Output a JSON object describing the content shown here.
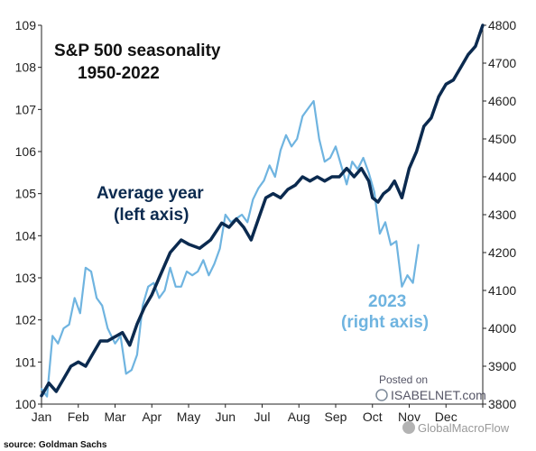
{
  "chart_data": {
    "type": "line",
    "title": "S&P 500 seasonality",
    "subtitle": "1950-2022",
    "source": "source: Goldman Sachs",
    "watermark": {
      "posted_on": "Posted on",
      "site": "ISABELNET.com",
      "wechat": "GlobalMacroFlow"
    },
    "x_range": [
      0,
      12
    ],
    "x_tick_labels": [
      "Jan",
      "Feb",
      "Mar",
      "Apr",
      "May",
      "Jun",
      "Jul",
      "Aug",
      "Sep",
      "Oct",
      "Nov",
      "Dec"
    ],
    "y_left": {
      "ticks": [
        100,
        101,
        102,
        103,
        104,
        105,
        106,
        107,
        108,
        109
      ],
      "range": [
        100,
        109
      ]
    },
    "y_right": {
      "ticks": [
        3800,
        3900,
        4000,
        4100,
        4200,
        4300,
        4400,
        4500,
        4600,
        4700,
        4800
      ],
      "range": [
        3800,
        4800
      ]
    },
    "grid": false,
    "legend": "none",
    "series": [
      {
        "label_line1": "Average year",
        "label_line2": "(left axis)",
        "axis": "left",
        "color": "#0b2a4f",
        "x": [
          0,
          0.2,
          0.4,
          0.6,
          0.8,
          1.0,
          1.2,
          1.4,
          1.6,
          1.8,
          2.0,
          2.2,
          2.4,
          2.6,
          2.8,
          3.0,
          3.2,
          3.5,
          3.8,
          4.0,
          4.3,
          4.6,
          4.9,
          5.1,
          5.3,
          5.5,
          5.7,
          5.9,
          6.1,
          6.3,
          6.5,
          6.7,
          6.9,
          7.1,
          7.3,
          7.5,
          7.7,
          7.9,
          8.1,
          8.3,
          8.5,
          8.7,
          8.9,
          9.0,
          9.15,
          9.3,
          9.45,
          9.6,
          9.8,
          10.0,
          10.2,
          10.4,
          10.6,
          10.8,
          11.0,
          11.2,
          11.4,
          11.6,
          11.8,
          12.0
        ],
        "y": [
          100.2,
          100.5,
          100.3,
          100.6,
          100.9,
          101.0,
          100.9,
          101.2,
          101.5,
          101.5,
          101.6,
          101.7,
          101.4,
          101.9,
          102.3,
          102.6,
          103.0,
          103.6,
          103.9,
          103.8,
          103.7,
          103.9,
          104.3,
          104.2,
          104.4,
          104.2,
          103.9,
          104.4,
          104.9,
          105.0,
          104.9,
          105.1,
          105.2,
          105.4,
          105.3,
          105.4,
          105.3,
          105.4,
          105.4,
          105.6,
          105.4,
          105.6,
          105.3,
          104.9,
          104.8,
          105.0,
          105.1,
          105.3,
          104.9,
          105.6,
          106.0,
          106.6,
          106.8,
          107.3,
          107.6,
          107.7,
          108.0,
          108.3,
          108.5,
          109.0
        ]
      },
      {
        "label_line1": "2023",
        "label_line2": "(right axis)",
        "axis": "right",
        "color": "#6fb4e0",
        "x": [
          0,
          0.15,
          0.3,
          0.45,
          0.6,
          0.75,
          0.9,
          1.05,
          1.2,
          1.35,
          1.5,
          1.65,
          1.8,
          2.0,
          2.15,
          2.3,
          2.45,
          2.6,
          2.75,
          2.9,
          3.05,
          3.2,
          3.35,
          3.5,
          3.65,
          3.8,
          3.95,
          4.1,
          4.25,
          4.4,
          4.55,
          4.7,
          4.85,
          5.0,
          5.15,
          5.3,
          5.45,
          5.6,
          5.75,
          5.9,
          6.05,
          6.2,
          6.35,
          6.5,
          6.65,
          6.8,
          6.95,
          7.1,
          7.25,
          7.4,
          7.55,
          7.7,
          7.85,
          8.0,
          8.15,
          8.3,
          8.45,
          8.6,
          8.75,
          8.9,
          9.05,
          9.2,
          9.35,
          9.5,
          9.65,
          9.8,
          9.95,
          10.1,
          10.25
        ],
        "y": [
          3840,
          3820,
          3980,
          3960,
          4000,
          4010,
          4080,
          4040,
          4160,
          4150,
          4080,
          4060,
          4000,
          3960,
          3980,
          3880,
          3890,
          3930,
          4060,
          4110,
          4120,
          4080,
          4100,
          4160,
          4110,
          4110,
          4150,
          4140,
          4150,
          4180,
          4140,
          4170,
          4210,
          4300,
          4280,
          4290,
          4300,
          4280,
          4340,
          4370,
          4390,
          4430,
          4400,
          4470,
          4510,
          4480,
          4500,
          4560,
          4580,
          4600,
          4500,
          4440,
          4450,
          4480,
          4430,
          4380,
          4440,
          4420,
          4450,
          4410,
          4360,
          4250,
          4280,
          4220,
          4230,
          4110,
          4140,
          4120,
          4220
        ]
      }
    ]
  }
}
